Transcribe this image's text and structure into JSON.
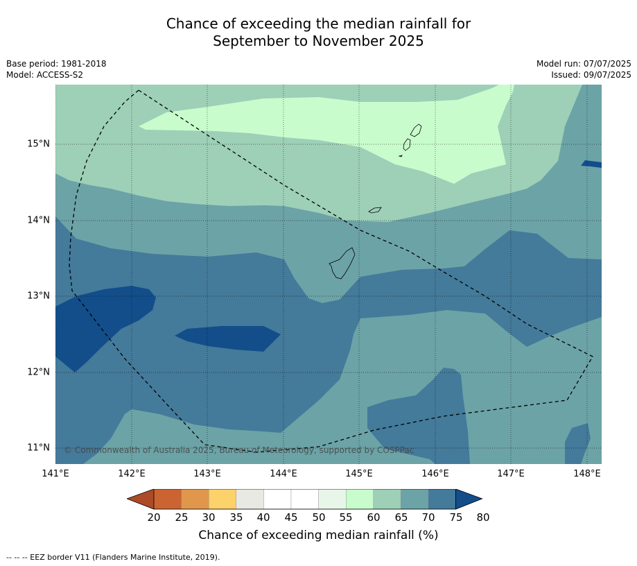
{
  "title_line1": "Chance of exceeding the median rainfall for",
  "title_line2": "September to November 2025",
  "base_period": "Base period: 1981-2018",
  "model": "Model: ACCESS-S2",
  "model_run": "Model run: 07/07/2025",
  "issued": "Issued: 09/07/2025",
  "lat_labels": [
    "15°N",
    "14°N",
    "13°N",
    "12°N",
    "11°N"
  ],
  "lon_labels": [
    "141°E",
    "142°E",
    "143°E",
    "144°E",
    "145°E",
    "146°E",
    "147°E",
    "148°E"
  ],
  "copyright": "© Commonwealth of Australia 2025, Bureau of Meteorology, supported by COSPPac",
  "colorbar": {
    "ticks": [
      "20",
      "25",
      "30",
      "35",
      "40",
      "45",
      "50",
      "55",
      "60",
      "65",
      "70",
      "75",
      "80"
    ],
    "colors": [
      "#ad4a27",
      "#cc6432",
      "#e0974b",
      "#fdd26b",
      "#e9e9e4",
      "#ffffff",
      "#ffffff",
      "#e7f6e8",
      "#c9fccd",
      "#9dd0b7",
      "#6ca3a7",
      "#447a9a",
      "#134e8b"
    ],
    "label": "Chance of exceeding median rainfall (%)"
  },
  "footnote": "-- -- -- EEZ border V11 (Flanders Marine Institute, 2019).",
  "map_colors": {
    "c65": "#c9fccd",
    "c70": "#9dd0b7",
    "c75": "#6ca3a7",
    "c80": "#447a9a",
    "c80plus": "#134e8b"
  }
}
